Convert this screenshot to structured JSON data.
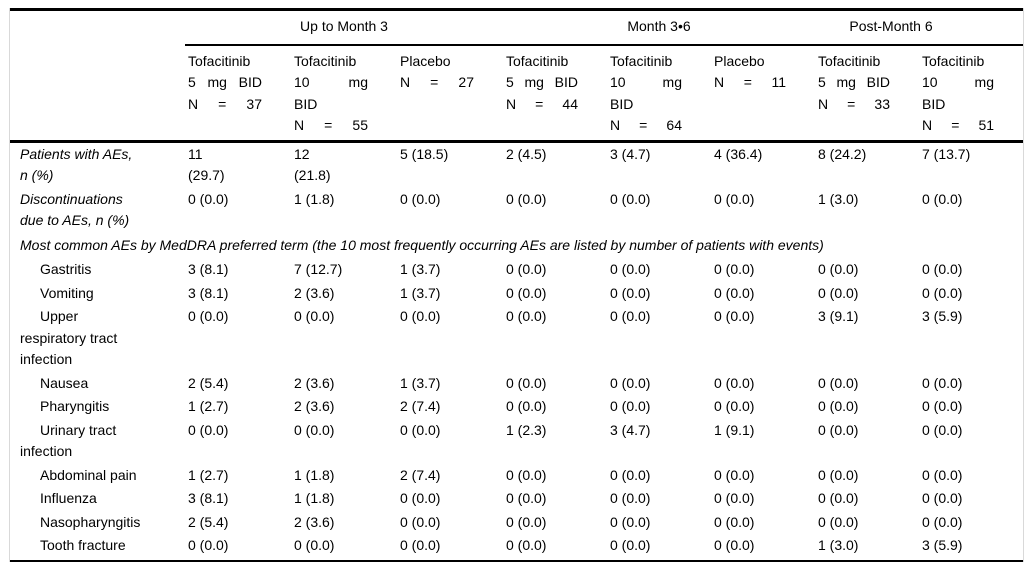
{
  "table": {
    "name": "adverse-events-by-period",
    "period_groups": [
      {
        "label": "Up to Month 3",
        "colspan": 3
      },
      {
        "label": "Month 3•6",
        "colspan": 3
      },
      {
        "label": "Post-Month 6",
        "colspan": 2
      }
    ],
    "columns": [
      {
        "lines": "Tofacitinib\n5 mg BID\nN = 37"
      },
      {
        "lines": "Tofacitinib\n10 mg\nBID\nN = 55"
      },
      {
        "lines": "Placebo\nN = 27"
      },
      {
        "lines": "Tofacitinib\n5 mg BID\nN = 44"
      },
      {
        "lines": "Tofacitinib\n10 mg\nBID\nN = 64"
      },
      {
        "lines": "Placebo\nN = 11"
      },
      {
        "lines": "Tofacitinib\n5 mg BID\nN = 33"
      },
      {
        "lines": "Tofacitinib\n10 mg\nBID\nN = 51"
      }
    ],
    "rows": [
      {
        "variant": "italic",
        "label": "Patients with AEs,\nn (%)",
        "values": [
          "11\n(29.7)",
          "12\n(21.8)",
          "5 (18.5)",
          "2 (4.5)",
          "3 (4.7)",
          "4 (36.4)",
          "8 (24.2)",
          "7 (13.7)"
        ]
      },
      {
        "variant": "italic",
        "label": "Discontinuations\ndue to AEs, n (%)",
        "values": [
          "0 (0.0)",
          "1 (1.8)",
          "0 (0.0)",
          "0 (0.0)",
          "0 (0.0)",
          "0 (0.0)",
          "1 (3.0)",
          "0 (0.0)"
        ]
      },
      {
        "variant": "section",
        "label": "Most common AEs by MedDRA preferred term (the 10 most frequently occurring AEs are listed by number of patients with events)"
      },
      {
        "variant": "indent",
        "label": "Gastritis",
        "values": [
          "3 (8.1)",
          "7 (12.7)",
          "1 (3.7)",
          "0 (0.0)",
          "0 (0.0)",
          "0 (0.0)",
          "0 (0.0)",
          "0 (0.0)"
        ]
      },
      {
        "variant": "indent",
        "label": "Vomiting",
        "values": [
          "3 (8.1)",
          "2 (3.6)",
          "1 (3.7)",
          "0 (0.0)",
          "0 (0.0)",
          "0 (0.0)",
          "0 (0.0)",
          "0 (0.0)"
        ]
      },
      {
        "variant": "indent",
        "label": "Upper\nrespiratory tract\ninfection",
        "values": [
          "0 (0.0)",
          "0 (0.0)",
          "0 (0.0)",
          "0 (0.0)",
          "0 (0.0)",
          "0 (0.0)",
          "3 (9.1)",
          "3 (5.9)"
        ]
      },
      {
        "variant": "indent",
        "label": "Nausea",
        "values": [
          "2 (5.4)",
          "2 (3.6)",
          "1 (3.7)",
          "0 (0.0)",
          "0 (0.0)",
          "0 (0.0)",
          "0 (0.0)",
          "0 (0.0)"
        ]
      },
      {
        "variant": "indent",
        "label": "Pharyngitis",
        "values": [
          "1 (2.7)",
          "2 (3.6)",
          "2 (7.4)",
          "0 (0.0)",
          "0 (0.0)",
          "0 (0.0)",
          "0 (0.0)",
          "0 (0.0)"
        ]
      },
      {
        "variant": "indent",
        "label": "Urinary tract\ninfection",
        "values": [
          "0 (0.0)",
          "0 (0.0)",
          "0 (0.0)",
          "1 (2.3)",
          "3 (4.7)",
          "1 (9.1)",
          "0 (0.0)",
          "0 (0.0)"
        ]
      },
      {
        "variant": "indent",
        "label": "Abdominal pain",
        "values": [
          "1 (2.7)",
          "1 (1.8)",
          "2 (7.4)",
          "0 (0.0)",
          "0 (0.0)",
          "0 (0.0)",
          "0 (0.0)",
          "0 (0.0)"
        ]
      },
      {
        "variant": "indent",
        "label": "Influenza",
        "values": [
          "3 (8.1)",
          "1 (1.8)",
          "0 (0.0)",
          "0 (0.0)",
          "0 (0.0)",
          "0 (0.0)",
          "0 (0.0)",
          "0 (0.0)"
        ]
      },
      {
        "variant": "indent",
        "label": "Nasopharyngitis",
        "values": [
          "2 (5.4)",
          "2 (3.6)",
          "0 (0.0)",
          "0 (0.0)",
          "0 (0.0)",
          "0 (0.0)",
          "0 (0.0)",
          "0 (0.0)"
        ]
      },
      {
        "variant": "indent",
        "label": "Tooth fracture",
        "values": [
          "0 (0.0)",
          "0 (0.0)",
          "0 (0.0)",
          "0 (0.0)",
          "0 (0.0)",
          "0 (0.0)",
          "1 (3.0)",
          "3 (5.9)"
        ]
      }
    ]
  }
}
